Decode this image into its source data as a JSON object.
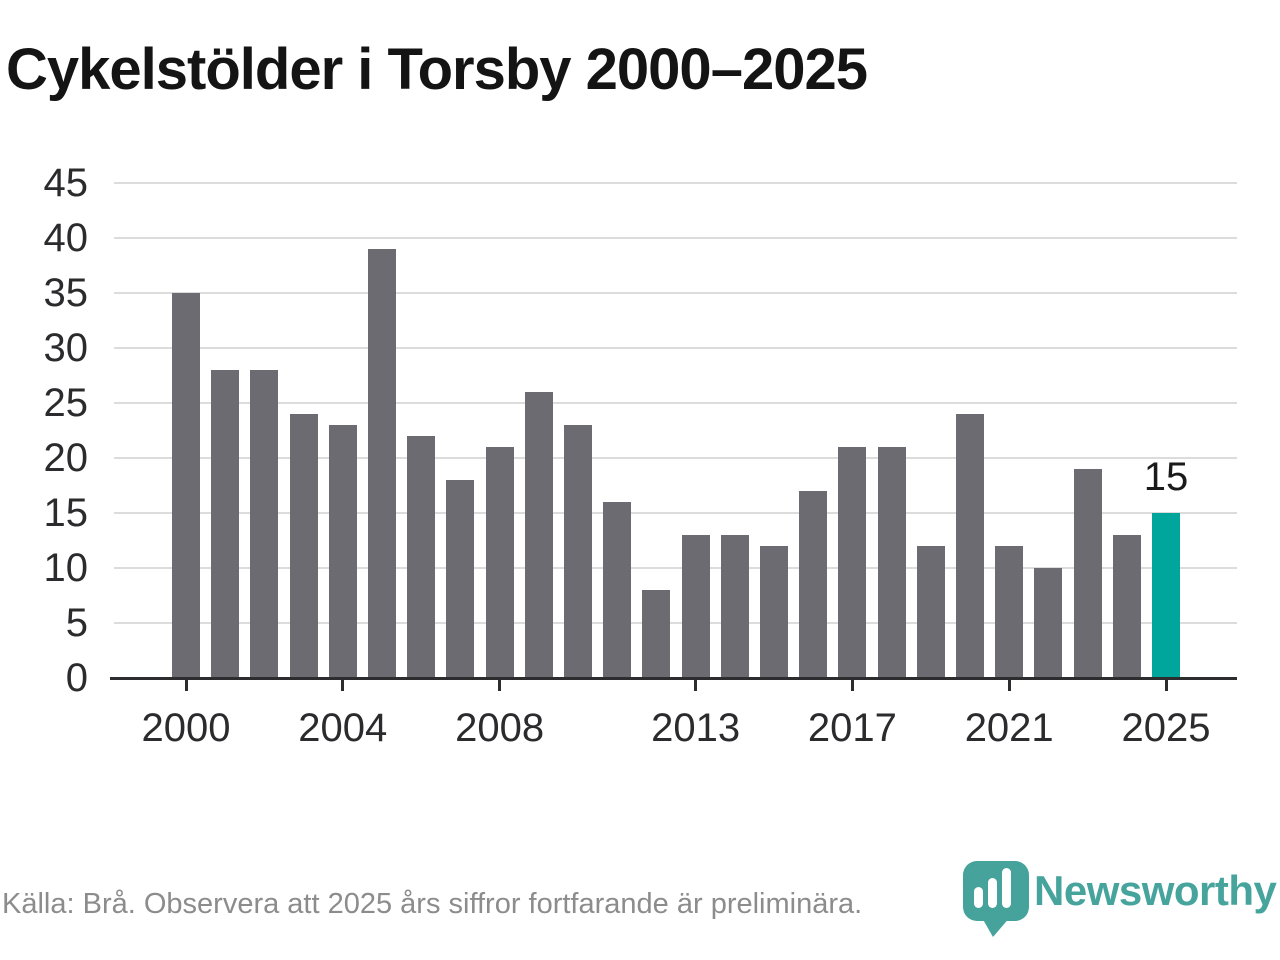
{
  "title": "Cykelstölder i Torsby 2000–2025",
  "chart_data": {
    "type": "bar",
    "title": "Cykelstölder i Torsby 2000–2025",
    "x": [
      2000,
      2001,
      2002,
      2003,
      2004,
      2005,
      2006,
      2007,
      2008,
      2009,
      2010,
      2011,
      2012,
      2013,
      2014,
      2015,
      2016,
      2017,
      2018,
      2019,
      2020,
      2021,
      2022,
      2023,
      2024,
      2025
    ],
    "values": [
      35,
      28,
      28,
      24,
      23,
      39,
      22,
      18,
      21,
      26,
      23,
      16,
      8,
      13,
      13,
      12,
      17,
      21,
      21,
      12,
      24,
      12,
      10,
      19,
      13,
      15
    ],
    "xlabel": "",
    "ylabel": "",
    "ylim": [
      0,
      45
    ],
    "y_ticks": [
      0,
      5,
      10,
      15,
      20,
      25,
      30,
      35,
      40,
      45
    ],
    "x_tick_labels": [
      "2000",
      "2004",
      "2008",
      "2013",
      "2017",
      "2021",
      "2025"
    ],
    "grid": true,
    "legend": "none",
    "highlight_year": 2025,
    "highlight_value_label": "15",
    "bar_color": "#6d6b72",
    "highlight_color": "#00a69b"
  },
  "footer": {
    "source_note": "Källa: Brå. Observera att 2025 års siffror fortfarande är preliminära.",
    "brand": "Newsworthy",
    "brand_color": "#46a49d"
  },
  "icons": {
    "logo": "newsworthy-pin-barchart-icon"
  }
}
